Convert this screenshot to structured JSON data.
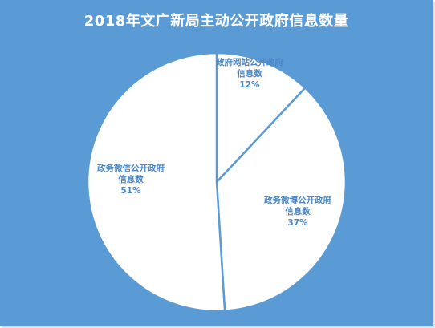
{
  "chart_data": {
    "type": "pie",
    "title": "2018年文广新局主动公开政府信息数量",
    "slices": [
      {
        "label_line1": "政府网站公开政府",
        "label_line2": "信息数",
        "percent_label": "12%",
        "value": 12
      },
      {
        "label_line1": "政务微博公开政府",
        "label_line2": "信息数",
        "percent_label": "37%",
        "value": 37
      },
      {
        "label_line1": "政务微信公开政府",
        "label_line2": "信息数",
        "percent_label": "51%",
        "value": 51
      }
    ],
    "legend": "none",
    "colors": {
      "background": "#5b9bd5",
      "slice_fill": "#ffffff",
      "slice_stroke": "#5b9bd5",
      "label_text": "#4a86c5",
      "title_text": "#ffffff"
    }
  }
}
